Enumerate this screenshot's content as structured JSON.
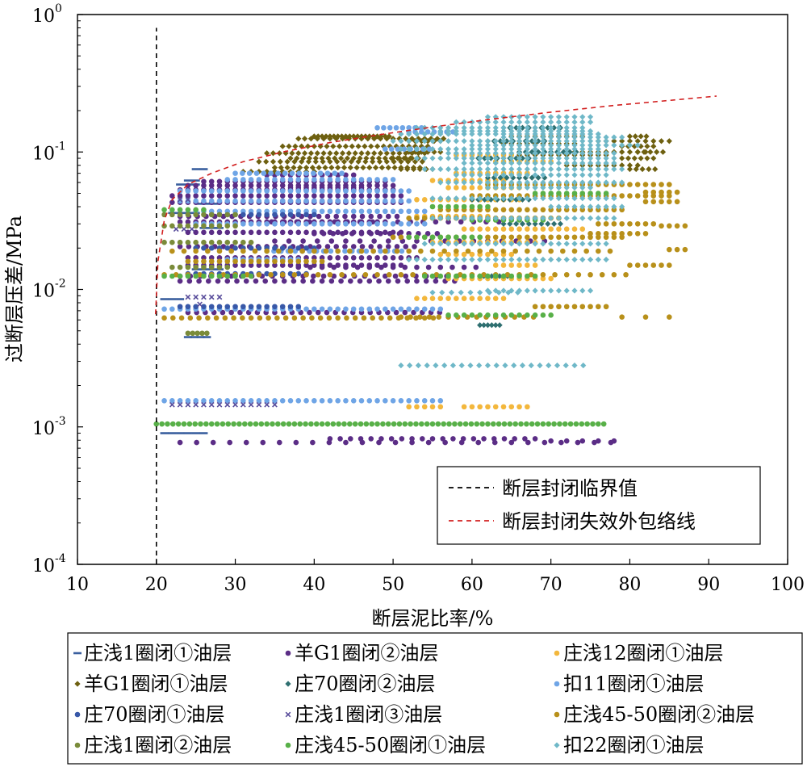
{
  "chart_data": {
    "type": "scatter",
    "xlabel": "断层泥比率/%",
    "ylabel": "过断层压差/MPa",
    "xlim": [
      10,
      100
    ],
    "ylim": [
      0.0001,
      1
    ],
    "y_scale": "log",
    "x_ticks": [
      "10",
      "20",
      "30",
      "40",
      "50",
      "60",
      "70",
      "80",
      "90",
      "100"
    ],
    "y_ticks": [
      {
        "value": 1,
        "base": "10",
        "exp": "0"
      },
      {
        "value": 0.1,
        "base": "10",
        "exp": "-1"
      },
      {
        "value": 0.01,
        "base": "10",
        "exp": "-2"
      },
      {
        "value": 0.001,
        "base": "10",
        "exp": "-3"
      },
      {
        "value": 0.0001,
        "base": "10",
        "exp": "-4"
      }
    ],
    "grid": false,
    "lines": [
      {
        "name": "断层封闭临界值",
        "color": "#000000",
        "dash": "6,5",
        "x": [
          20,
          20
        ],
        "y": [
          0.0001,
          0.8
        ]
      },
      {
        "name": "断层封闭失效外包络线",
        "color": "#d22020",
        "dash": "6,5",
        "x": [
          19.9,
          20.2,
          21,
          22,
          24,
          27,
          31,
          36,
          42,
          48,
          55,
          62,
          70,
          78,
          86,
          91
        ],
        "y": [
          0.0066,
          0.016,
          0.032,
          0.045,
          0.058,
          0.07,
          0.085,
          0.1,
          0.117,
          0.133,
          0.152,
          0.172,
          0.195,
          0.218,
          0.24,
          0.255
        ]
      }
    ],
    "lines_legend_position": "bottom-right",
    "series": [
      {
        "name": "庄浅1圈闭①油层",
        "color": "#3a5f9e",
        "marker": "dash"
      },
      {
        "name": "羊G1圈闭②油层",
        "color": "#5b2d86",
        "marker": "dot"
      },
      {
        "name": "庄浅12圈闭①油层",
        "color": "#f3b73c",
        "marker": "dot"
      },
      {
        "name": "羊G1圈闭①油层",
        "color": "#6e6010",
        "marker": "diamond"
      },
      {
        "name": "庄70圈闭②油层",
        "color": "#2e6f70",
        "marker": "diamond"
      },
      {
        "name": "扣11圈闭①油层",
        "color": "#6fa5e6",
        "marker": "dot"
      },
      {
        "name": "庄70圈闭①油层",
        "color": "#3858a8",
        "marker": "dot"
      },
      {
        "name": "庄浅1圈闭③油层",
        "color": "#5a4e9c",
        "marker": "cross"
      },
      {
        "name": "庄浅45-50圈闭②油层",
        "color": "#b8901a",
        "marker": "dot"
      },
      {
        "name": "庄浅1圈闭②油层",
        "color": "#7a8b3a",
        "marker": "dot"
      },
      {
        "name": "庄浅45-50圈闭①油层",
        "color": "#58b048",
        "marker": "dot"
      },
      {
        "name": "扣22圈闭①油层",
        "color": "#6fb8c8",
        "marker": "diamond"
      }
    ],
    "series_legend_position": "bottom",
    "points": [
      [
        1,
        21,
        0.0009,
        6,
        1.0
      ],
      [
        1,
        24,
        0.0045,
        4,
        0.8
      ],
      [
        1,
        21,
        0.0085,
        3,
        1.0
      ],
      [
        1,
        23,
        0.058,
        3,
        1.0
      ],
      [
        1,
        24,
        0.062,
        2,
        1.0
      ],
      [
        1,
        25,
        0.014,
        4,
        1.0
      ],
      [
        1,
        26,
        0.028,
        3,
        1.0
      ],
      [
        1,
        22,
        0.036,
        4,
        1.0
      ],
      [
        1,
        25.5,
        0.042,
        3,
        1.0
      ],
      [
        1,
        25,
        0.075,
        2,
        1.0
      ],
      [
        2,
        23,
        0.00077,
        27,
        2.1
      ],
      [
        2,
        42,
        0.00082,
        21,
        1.3
      ],
      [
        2,
        70,
        0.00079,
        5,
        2.0
      ],
      [
        2,
        23,
        0.0115,
        30,
        1.2
      ],
      [
        2,
        23,
        0.0125,
        28,
        1.3
      ],
      [
        2,
        24,
        0.0068,
        30,
        1.1
      ],
      [
        2,
        22,
        0.043,
        30,
        1.0
      ],
      [
        2,
        22,
        0.048,
        30,
        1.0
      ],
      [
        2,
        23,
        0.053,
        28,
        1.0
      ],
      [
        2,
        24,
        0.057,
        27,
        1.0
      ],
      [
        2,
        26,
        0.061,
        24,
        1.0
      ],
      [
        2,
        34,
        0.068,
        12,
        1.0
      ],
      [
        2,
        23,
        0.034,
        26,
        1.1
      ],
      [
        2,
        23,
        0.031,
        26,
        1.0
      ],
      [
        2,
        24,
        0.026,
        28,
        1.0
      ],
      [
        2,
        24,
        0.017,
        30,
        1.0
      ],
      [
        2,
        24,
        0.015,
        28,
        1.0
      ],
      [
        2,
        23,
        0.0205,
        28,
        1.1
      ],
      [
        2,
        37,
        0.055,
        10,
        1.0
      ],
      [
        2,
        36,
        0.044,
        12,
        1.0
      ],
      [
        2,
        33,
        0.031,
        20,
        1.6
      ],
      [
        2,
        35,
        0.0225,
        20,
        1.8
      ],
      [
        2,
        40,
        0.0255,
        14,
        1.2
      ],
      [
        2,
        38,
        0.0145,
        16,
        1.5
      ],
      [
        3,
        52,
        0.0014,
        5,
        1.0
      ],
      [
        3,
        59,
        0.0014,
        9,
        1.0
      ],
      [
        3,
        53,
        0.0086,
        12,
        1.0
      ],
      [
        3,
        57,
        0.012,
        14,
        1.0
      ],
      [
        3,
        55,
        0.022,
        14,
        1.0
      ],
      [
        3,
        59,
        0.0275,
        16,
        1.0
      ],
      [
        3,
        53,
        0.045,
        14,
        1.0
      ],
      [
        3,
        58,
        0.07,
        10,
        1.0
      ],
      [
        3,
        58,
        0.095,
        8,
        1.0
      ],
      [
        3,
        63,
        0.085,
        8,
        1.0
      ],
      [
        3,
        53,
        0.034,
        10,
        1.0
      ],
      [
        3,
        57,
        0.055,
        10,
        1.0
      ],
      [
        3,
        56,
        0.018,
        10,
        1.0
      ],
      [
        3,
        63,
        0.015,
        6,
        1.0
      ],
      [
        3,
        55,
        0.062,
        10,
        1.0
      ],
      [
        4,
        31,
        0.072,
        10,
        1.0
      ],
      [
        4,
        33,
        0.085,
        24,
        0.9
      ],
      [
        4,
        34,
        0.098,
        26,
        0.8
      ],
      [
        4,
        36,
        0.11,
        24,
        0.8
      ],
      [
        4,
        38,
        0.125,
        24,
        0.8
      ],
      [
        4,
        40,
        0.13,
        20,
        0.5
      ],
      [
        4,
        35,
        0.077,
        24,
        0.8
      ],
      [
        4,
        37,
        0.09,
        20,
        0.8
      ],
      [
        4,
        50,
        0.09,
        6,
        0.8
      ],
      [
        4,
        51,
        0.075,
        6,
        0.8
      ],
      [
        4,
        52,
        0.1,
        6,
        0.8
      ],
      [
        4,
        52,
        0.12,
        6,
        0.8
      ],
      [
        4,
        64,
        0.115,
        10,
        1.0
      ],
      [
        4,
        66,
        0.095,
        12,
        1.0
      ],
      [
        4,
        65,
        0.13,
        10,
        1.0
      ],
      [
        4,
        72,
        0.08,
        10,
        1.0
      ],
      [
        4,
        73,
        0.1,
        10,
        1.0
      ],
      [
        4,
        76,
        0.12,
        10,
        1.0
      ],
      [
        4,
        79,
        0.11,
        6,
        0.8
      ],
      [
        4,
        79,
        0.09,
        6,
        0.8
      ],
      [
        4,
        80,
        0.13,
        4,
        0.7
      ],
      [
        4,
        80,
        0.075,
        5,
        0.8
      ],
      [
        4,
        81,
        0.1,
        5,
        0.8
      ],
      [
        5,
        61,
        0.0055,
        6,
        0.5
      ],
      [
        5,
        61,
        0.0125,
        8,
        0.5
      ],
      [
        5,
        64,
        0.03,
        10,
        0.8
      ],
      [
        5,
        60,
        0.045,
        10,
        0.8
      ],
      [
        5,
        62,
        0.065,
        10,
        0.8
      ],
      [
        5,
        62,
        0.12,
        10,
        0.8
      ],
      [
        5,
        64,
        0.15,
        10,
        0.8
      ],
      [
        5,
        60,
        0.09,
        10,
        0.8
      ],
      [
        5,
        66,
        0.1,
        10,
        0.8
      ],
      [
        6,
        21,
        0.00155,
        36,
        1.0
      ],
      [
        6,
        21,
        0.0072,
        36,
        1.0
      ],
      [
        6,
        23,
        0.044,
        30,
        1.0
      ],
      [
        6,
        23,
        0.052,
        30,
        1.0
      ],
      [
        6,
        30,
        0.07,
        16,
        0.9
      ],
      [
        6,
        29,
        0.063,
        22,
        1.0
      ],
      [
        6,
        25,
        0.037,
        30,
        1.0
      ],
      [
        6,
        25,
        0.03,
        30,
        1.0
      ],
      [
        6,
        34,
        0.019,
        20,
        0.9
      ],
      [
        6,
        48,
        0.15,
        8,
        0.8
      ],
      [
        6,
        52,
        0.14,
        8,
        0.8
      ],
      [
        6,
        49,
        0.105,
        8,
        0.8
      ],
      [
        6,
        29,
        0.0165,
        10,
        1.0
      ],
      [
        7,
        23,
        0.0075,
        16,
        1.0
      ],
      [
        7,
        24,
        0.013,
        16,
        1.0
      ],
      [
        7,
        25,
        0.02,
        16,
        1.0
      ],
      [
        7,
        27,
        0.035,
        14,
        1.0
      ],
      [
        8,
        22,
        0.00145,
        14,
        1.0
      ],
      [
        8,
        24,
        0.0088,
        5,
        1.0
      ],
      [
        8,
        25.5,
        0.0078,
        1,
        1.0
      ],
      [
        8,
        22.5,
        0.0275,
        3,
        1.0
      ],
      [
        8,
        23,
        0.045,
        2,
        1.0
      ],
      [
        9,
        21,
        0.0062,
        32,
        1.1
      ],
      [
        9,
        51,
        0.0063,
        15,
        1.2
      ],
      [
        9,
        79,
        0.0063,
        3,
        3.0
      ],
      [
        9,
        21,
        0.0128,
        40,
        1.5
      ],
      [
        9,
        22,
        0.019,
        38,
        1.5
      ],
      [
        9,
        50,
        0.024,
        30,
        1.0
      ],
      [
        9,
        56,
        0.038,
        24,
        1.0
      ],
      [
        9,
        60,
        0.048,
        26,
        1.0
      ],
      [
        9,
        62,
        0.058,
        24,
        1.0
      ],
      [
        9,
        76,
        0.03,
        8,
        1.0
      ],
      [
        9,
        82,
        0.0435,
        5,
        1.0
      ],
      [
        9,
        82,
        0.051,
        5,
        1.0
      ],
      [
        9,
        85,
        0.0195,
        3,
        1.0
      ],
      [
        9,
        84,
        0.029,
        4,
        1.0
      ],
      [
        9,
        80,
        0.015,
        6,
        1.0
      ],
      [
        9,
        75,
        0.0255,
        8,
        1.0
      ],
      [
        9,
        52,
        0.033,
        20,
        1.0
      ],
      [
        9,
        68,
        0.0075,
        10,
        1.0
      ],
      [
        9,
        24,
        0.016,
        18,
        1.0
      ],
      [
        10,
        21,
        0.022,
        12,
        1.0
      ],
      [
        10,
        21,
        0.029,
        10,
        1.0
      ],
      [
        10,
        21,
        0.035,
        10,
        1.0
      ],
      [
        10,
        22,
        0.0145,
        8,
        1.0
      ],
      [
        10,
        24,
        0.0048,
        5,
        0.6
      ],
      [
        11,
        20,
        0.00105,
        82,
        0.7
      ],
      [
        11,
        21,
        0.0125,
        12,
        1.0
      ],
      [
        11,
        21,
        0.038,
        6,
        1.0
      ],
      [
        11,
        54,
        0.0125,
        15,
        1.0
      ],
      [
        11,
        57,
        0.0065,
        14,
        1.0
      ],
      [
        11,
        52,
        0.024,
        10,
        1.0
      ],
      [
        11,
        60,
        0.032,
        10,
        1.0
      ],
      [
        11,
        55,
        0.04,
        8,
        1.0
      ],
      [
        11,
        68,
        0.05,
        10,
        1.0
      ],
      [
        12,
        51,
        0.0028,
        22,
        1.1
      ],
      [
        12,
        55,
        0.0095,
        10,
        1.2
      ],
      [
        12,
        62,
        0.0098,
        14,
        1.0
      ],
      [
        12,
        52,
        0.0165,
        26,
        1.0
      ],
      [
        12,
        54,
        0.0215,
        24,
        1.0
      ],
      [
        12,
        55,
        0.033,
        24,
        1.0
      ],
      [
        12,
        55,
        0.046,
        24,
        1.0
      ],
      [
        12,
        56,
        0.06,
        24,
        1.0
      ],
      [
        12,
        54,
        0.075,
        26,
        1.0
      ],
      [
        12,
        53,
        0.09,
        26,
        1.0
      ],
      [
        12,
        51,
        0.105,
        26,
        1.0
      ],
      [
        12,
        50,
        0.12,
        28,
        1.0
      ],
      [
        12,
        51,
        0.135,
        26,
        1.0
      ],
      [
        12,
        53,
        0.15,
        22,
        1.0
      ],
      [
        12,
        58,
        0.165,
        18,
        1.0
      ],
      [
        12,
        62,
        0.18,
        14,
        1.0
      ],
      [
        12,
        60,
        0.112,
        22,
        1.0
      ],
      [
        12,
        57,
        0.098,
        22,
        1.0
      ],
      [
        12,
        59,
        0.083,
        20,
        1.0
      ],
      [
        12,
        58,
        0.068,
        20,
        1.0
      ],
      [
        12,
        64,
        0.128,
        16,
        1.0
      ],
      [
        12,
        56,
        0.142,
        20,
        1.0
      ],
      [
        12,
        62,
        0.055,
        14,
        1.0
      ],
      [
        12,
        70,
        0.04,
        10,
        1.0
      ]
    ]
  }
}
